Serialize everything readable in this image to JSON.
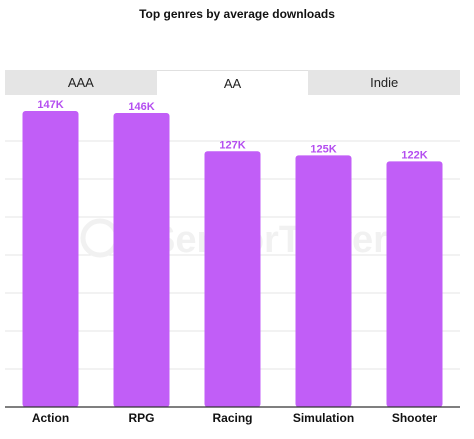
{
  "chart_data": {
    "type": "bar",
    "title": "Top genres by average downloads",
    "categories": [
      "Action",
      "RPG",
      "Racing",
      "Simulation",
      "Shooter"
    ],
    "values": [
      147,
      146,
      127,
      125,
      122
    ],
    "value_labels": [
      "147K",
      "146K",
      "127K",
      "125K",
      "122K"
    ],
    "ylim": [
      0,
      150
    ],
    "grid": true,
    "bar_color": "#c15ef7",
    "label_color": "#b44ef0"
  },
  "tabs": [
    {
      "label": "AAA",
      "active": false
    },
    {
      "label": "AA",
      "active": true
    },
    {
      "label": "Indie",
      "active": false
    }
  ],
  "watermark": "SensorTower"
}
